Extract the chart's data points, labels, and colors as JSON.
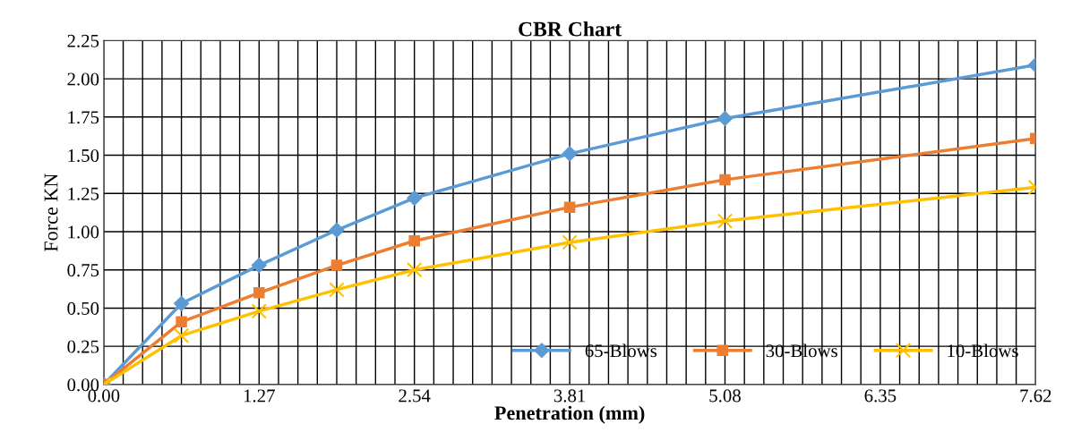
{
  "chart_data": {
    "type": "line",
    "title": "CBR Chart",
    "xlabel": "Penetration (mm)",
    "ylabel": "Force KN",
    "x": [
      0,
      0.635,
      1.27,
      1.905,
      2.54,
      3.81,
      5.08,
      7.62
    ],
    "series": [
      {
        "name": "65-Blows",
        "color": "#5b9bd5",
        "marker": "diamond",
        "values": [
          0,
          0.53,
          0.78,
          1.01,
          1.22,
          1.51,
          1.74,
          2.09
        ]
      },
      {
        "name": "30-Blows",
        "color": "#ed7d31",
        "marker": "square",
        "values": [
          0,
          0.41,
          0.6,
          0.78,
          0.94,
          1.16,
          1.34,
          1.61
        ]
      },
      {
        "name": "10-Blows",
        "color": "#ffc000",
        "marker": "cross",
        "values": [
          0,
          0.32,
          0.48,
          0.62,
          0.75,
          0.93,
          1.07,
          1.29
        ]
      }
    ],
    "xlim": [
      0,
      7.62
    ],
    "ylim": [
      0,
      2.25
    ],
    "xticks": [
      {
        "value": 0,
        "label": "0.00"
      },
      {
        "value": 0.15875,
        "label": null
      },
      {
        "value": 0.3175,
        "label": null
      },
      {
        "value": 0.47625,
        "label": null
      },
      {
        "value": 0.635,
        "label": null
      },
      {
        "value": 0.79375,
        "label": null
      },
      {
        "value": 0.9525,
        "label": null
      },
      {
        "value": 1.11125,
        "label": null
      },
      {
        "value": 1.27,
        "label": "1.27"
      },
      {
        "value": 1.42875,
        "label": null
      },
      {
        "value": 1.5875,
        "label": null
      },
      {
        "value": 1.74625,
        "label": null
      },
      {
        "value": 1.905,
        "label": null
      },
      {
        "value": 2.06375,
        "label": null
      },
      {
        "value": 2.2225,
        "label": null
      },
      {
        "value": 2.38125,
        "label": null
      },
      {
        "value": 2.54,
        "label": "2.54"
      },
      {
        "value": 2.69875,
        "label": null
      },
      {
        "value": 2.8575,
        "label": null
      },
      {
        "value": 3.01625,
        "label": null
      },
      {
        "value": 3.175,
        "label": null
      },
      {
        "value": 3.33375,
        "label": null
      },
      {
        "value": 3.4925,
        "label": null
      },
      {
        "value": 3.65125,
        "label": null
      },
      {
        "value": 3.81,
        "label": "3.81"
      },
      {
        "value": 3.96875,
        "label": null
      },
      {
        "value": 4.1275,
        "label": null
      },
      {
        "value": 4.28625,
        "label": null
      },
      {
        "value": 4.445,
        "label": null
      },
      {
        "value": 4.60375,
        "label": null
      },
      {
        "value": 4.7625,
        "label": null
      },
      {
        "value": 4.92125,
        "label": null
      },
      {
        "value": 5.08,
        "label": "5.08"
      },
      {
        "value": 5.23875,
        "label": null
      },
      {
        "value": 5.3975,
        "label": null
      },
      {
        "value": 5.55625,
        "label": null
      },
      {
        "value": 5.715,
        "label": null
      },
      {
        "value": 5.87375,
        "label": null
      },
      {
        "value": 6.0325,
        "label": null
      },
      {
        "value": 6.19125,
        "label": null
      },
      {
        "value": 6.35,
        "label": "6.35"
      },
      {
        "value": 6.50875,
        "label": null
      },
      {
        "value": 6.6675,
        "label": null
      },
      {
        "value": 6.82625,
        "label": null
      },
      {
        "value": 6.985,
        "label": null
      },
      {
        "value": 7.14375,
        "label": null
      },
      {
        "value": 7.3025,
        "label": null
      },
      {
        "value": 7.46125,
        "label": null
      },
      {
        "value": 7.62,
        "label": "7.62"
      }
    ],
    "yticks": [
      {
        "value": 0,
        "label": "0.00"
      },
      {
        "value": 0.25,
        "label": "0.25"
      },
      {
        "value": 0.5,
        "label": "0.50"
      },
      {
        "value": 0.75,
        "label": "0.75"
      },
      {
        "value": 1,
        "label": "1.00"
      },
      {
        "value": 1.25,
        "label": "1.25"
      },
      {
        "value": 1.5,
        "label": "1.50"
      },
      {
        "value": 1.75,
        "label": "1.75"
      },
      {
        "value": 2,
        "label": "2.00"
      },
      {
        "value": 2.25,
        "label": "2.25"
      }
    ],
    "grid": true,
    "legend": "bottom right",
    "line_style": "solid"
  }
}
